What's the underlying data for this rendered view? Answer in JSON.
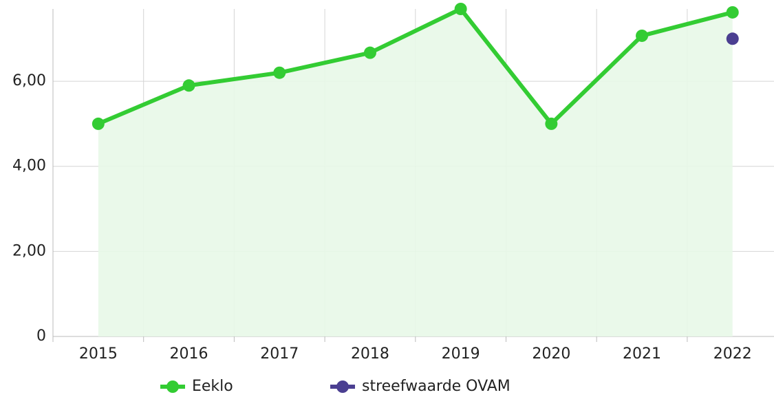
{
  "chart_data": {
    "type": "line",
    "categories": [
      "2015",
      "2016",
      "2017",
      "2018",
      "2019",
      "2020",
      "2021",
      "2022"
    ],
    "series": [
      {
        "name": "Eeklo",
        "color": "#33cc33",
        "fill": "#e8f8e8",
        "area": true,
        "values": [
          5.0,
          5.9,
          6.2,
          6.67,
          7.7,
          5.0,
          7.07,
          7.62
        ]
      },
      {
        "name": "streefwaarde OVAM",
        "color": "#4b3f91",
        "area": false,
        "values": [
          null,
          null,
          null,
          null,
          null,
          null,
          null,
          7.0
        ]
      }
    ],
    "ylim": [
      0,
      7.7
    ],
    "yticks": [
      0,
      {
        "value": 2,
        "label": "2,00"
      },
      {
        "value": 4,
        "label": "4,00"
      },
      {
        "value": 6,
        "label": "6,00"
      }
    ],
    "grid": true,
    "legend": "bottom"
  }
}
